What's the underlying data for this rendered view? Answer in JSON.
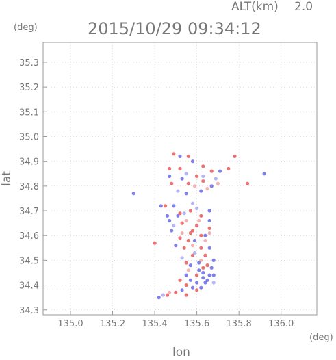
{
  "header": {
    "alt_label": "ALT(km)",
    "alt_value": "2.0",
    "timestamp": "2015/10/29 09:34:12",
    "y_unit": "(deg)",
    "x_unit": "(deg)"
  },
  "chart_data": {
    "type": "scatter",
    "title": "2015/10/29 09:34:12",
    "xlabel": "lon",
    "ylabel": "lat",
    "xlim": [
      134.87,
      136.17
    ],
    "ylim": [
      34.28,
      35.38
    ],
    "x_ticks": [
      135.0,
      135.2,
      135.4,
      135.6,
      135.8,
      136.0
    ],
    "x_tick_labels": [
      "135.0",
      "135.2",
      "135.4",
      "135.6",
      "135.8",
      "136.0"
    ],
    "y_ticks": [
      34.3,
      34.4,
      34.5,
      34.6,
      34.7,
      34.8,
      34.9,
      35.0,
      35.1,
      35.2,
      35.3
    ],
    "y_tick_labels": [
      "34.3",
      "34.4",
      "34.5",
      "34.6",
      "34.7",
      "34.8",
      "34.9",
      "35.0",
      "35.1",
      "35.2",
      "35.3"
    ],
    "grid": true,
    "colors": {
      "positive": "#e85a5a",
      "positive_light": "#f2a6a6",
      "negative": "#6a6ae8",
      "negative_light": "#a9a9f2",
      "axis": "#999999",
      "text": "#777777"
    },
    "series": [
      {
        "color_key": "positive",
        "points": [
          [
            135.49,
            34.93
          ],
          [
            135.56,
            34.92
          ],
          [
            135.78,
            34.92
          ],
          [
            135.47,
            34.87
          ],
          [
            135.52,
            34.87
          ],
          [
            135.63,
            34.88
          ],
          [
            135.75,
            34.87
          ],
          [
            135.6,
            34.84
          ],
          [
            135.67,
            34.86
          ],
          [
            135.48,
            34.81
          ],
          [
            135.56,
            34.81
          ],
          [
            135.63,
            34.82
          ],
          [
            135.84,
            34.81
          ],
          [
            135.45,
            34.72
          ],
          [
            135.52,
            34.69
          ],
          [
            135.57,
            34.7
          ],
          [
            135.62,
            34.68
          ],
          [
            135.53,
            34.65
          ],
          [
            135.6,
            34.64
          ],
          [
            135.66,
            34.63
          ],
          [
            135.57,
            34.61
          ],
          [
            135.62,
            34.6
          ],
          [
            135.52,
            34.59
          ],
          [
            135.56,
            34.58
          ],
          [
            135.4,
            34.57
          ],
          [
            135.54,
            34.55
          ],
          [
            135.62,
            34.55
          ],
          [
            135.58,
            34.52
          ],
          [
            135.64,
            34.52
          ],
          [
            135.55,
            34.49
          ],
          [
            135.63,
            34.47
          ],
          [
            135.6,
            34.44
          ],
          [
            135.52,
            34.42
          ],
          [
            135.55,
            34.4
          ],
          [
            135.46,
            34.36
          ],
          [
            135.5,
            34.37
          ],
          [
            135.55,
            34.36
          ],
          [
            135.6,
            34.38
          ],
          [
            135.65,
            34.48
          ],
          [
            135.58,
            34.62
          ]
        ]
      },
      {
        "color_key": "positive_light",
        "points": [
          [
            135.59,
            34.8
          ],
          [
            135.65,
            34.79
          ],
          [
            135.55,
            34.66
          ],
          [
            135.61,
            34.66
          ],
          [
            135.64,
            34.58
          ],
          [
            135.53,
            34.61
          ],
          [
            135.58,
            34.56
          ],
          [
            135.62,
            34.5
          ],
          [
            135.56,
            34.46
          ],
          [
            135.47,
            34.37
          ],
          [
            135.66,
            34.61
          ],
          [
            135.7,
            34.81
          ]
        ]
      },
      {
        "color_key": "negative",
        "points": [
          [
            135.52,
            34.92
          ],
          [
            135.58,
            34.9
          ],
          [
            135.71,
            34.86
          ],
          [
            135.92,
            34.85
          ],
          [
            135.3,
            34.77
          ],
          [
            135.47,
            34.84
          ],
          [
            135.53,
            34.83
          ],
          [
            135.62,
            34.78
          ],
          [
            135.67,
            34.8
          ],
          [
            135.55,
            34.77
          ],
          [
            135.43,
            34.72
          ],
          [
            135.49,
            34.72
          ],
          [
            135.51,
            34.68
          ],
          [
            135.66,
            34.7
          ],
          [
            135.66,
            34.66
          ],
          [
            135.47,
            34.66
          ],
          [
            135.48,
            34.62
          ],
          [
            135.64,
            34.6
          ],
          [
            135.5,
            34.56
          ],
          [
            135.59,
            34.58
          ],
          [
            135.66,
            34.55
          ],
          [
            135.57,
            34.48
          ],
          [
            135.61,
            34.49
          ],
          [
            135.67,
            34.47
          ],
          [
            135.66,
            34.44
          ],
          [
            135.63,
            34.43
          ],
          [
            135.65,
            34.42
          ],
          [
            135.57,
            34.42
          ],
          [
            135.6,
            34.41
          ],
          [
            135.64,
            34.41
          ],
          [
            135.58,
            34.39
          ],
          [
            135.62,
            34.39
          ],
          [
            135.42,
            34.35
          ],
          [
            135.53,
            34.38
          ],
          [
            135.68,
            34.5
          ],
          [
            135.55,
            34.44
          ],
          [
            135.63,
            34.45
          ],
          [
            135.61,
            34.46
          ],
          [
            135.68,
            34.44
          ],
          [
            135.46,
            34.68
          ]
        ]
      },
      {
        "color_key": "negative_light",
        "points": [
          [
            135.55,
            34.85
          ],
          [
            135.63,
            34.84
          ],
          [
            135.69,
            34.83
          ],
          [
            135.51,
            34.78
          ],
          [
            135.58,
            34.73
          ],
          [
            135.6,
            34.71
          ],
          [
            135.54,
            34.69
          ],
          [
            135.49,
            34.64
          ],
          [
            135.59,
            34.53
          ],
          [
            135.53,
            34.51
          ],
          [
            135.68,
            34.41
          ],
          [
            135.44,
            34.36
          ]
        ]
      }
    ]
  }
}
